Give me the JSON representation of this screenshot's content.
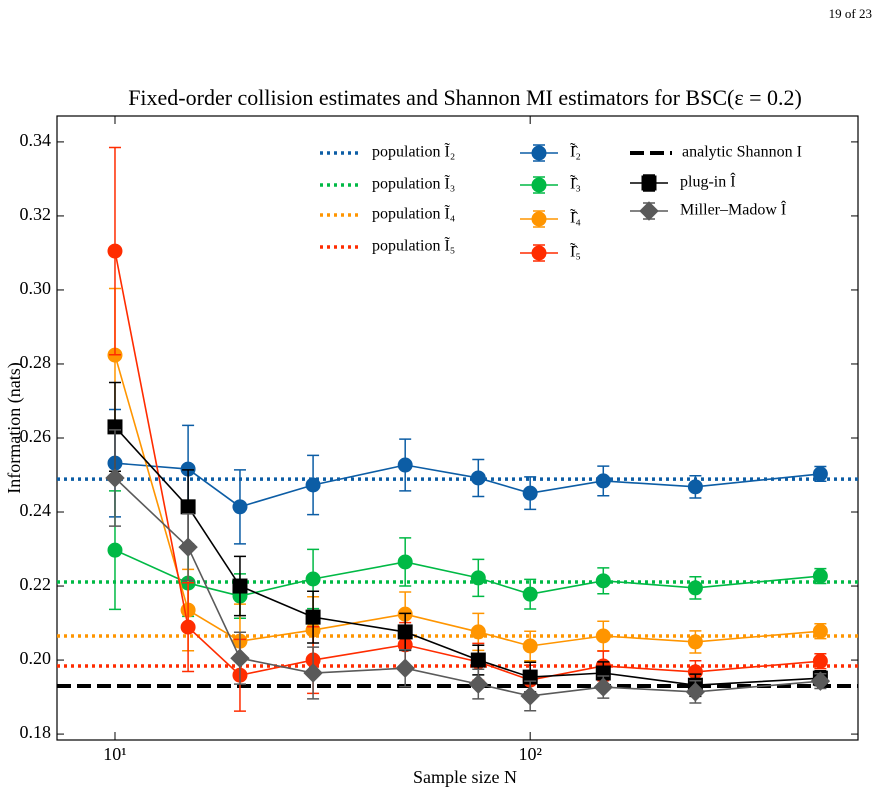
{
  "header": {
    "page": "19 of 23"
  },
  "chart_data": {
    "type": "errorbar-line",
    "title": "Fixed-order collision estimates and Shannon MI estimators for BSC(ε = 0.2)",
    "x_label": "Sample size N",
    "y_label": "Information (nats)",
    "x_scale": "log",
    "x": [
      10,
      15,
      20,
      30,
      50,
      75,
      100,
      150,
      250,
      500
    ],
    "xlim": [
      7.25,
      616
    ],
    "xticks": [
      {
        "value": 10,
        "label": "10¹"
      },
      {
        "value": 100,
        "label": "10²"
      }
    ],
    "ylim": [
      0.1784,
      0.347
    ],
    "yticks": [
      0.18,
      {
        "value": 0.2,
        "label": "0.20"
      },
      0.22,
      0.24,
      0.26,
      0.28,
      {
        "value": 0.3,
        "label": "0.30"
      },
      0.32,
      0.34
    ],
    "hlines": [
      {
        "name": "population Ĩ₂",
        "color": "#0C5DA5",
        "value": 0.2489,
        "style": "dotted"
      },
      {
        "name": "population Ĩ₃",
        "color": "#00B945",
        "value": 0.2211,
        "style": "dotted"
      },
      {
        "name": "population Ĩ₄",
        "color": "#FF9500",
        "value": 0.2065,
        "style": "dotted"
      },
      {
        "name": "population Ĩ₅",
        "color": "#FF2C00",
        "value": 0.1984,
        "style": "dotted"
      },
      {
        "name": "analytic Shannon I",
        "color": "#000000",
        "value": 0.193,
        "style": "dashed"
      }
    ],
    "series": [
      {
        "name": "Ĩ̂₂",
        "color": "#0C5DA5",
        "marker": "circle",
        "values": [
          0.2532,
          0.2516,
          0.2414,
          0.2473,
          0.2527,
          0.2492,
          0.2451,
          0.2484,
          0.2468,
          0.2503
        ],
        "errors": [
          0.0145,
          0.0118,
          0.01,
          0.008,
          0.007,
          0.005,
          0.0044,
          0.004,
          0.003,
          0.002
        ]
      },
      {
        "name": "Ĩ̂₃",
        "color": "#00B945",
        "marker": "circle",
        "values": [
          0.2297,
          0.2208,
          0.2173,
          0.2219,
          0.2265,
          0.2222,
          0.2178,
          0.2214,
          0.2195,
          0.2227
        ],
        "errors": [
          0.016,
          0.009,
          0.006,
          0.008,
          0.0065,
          0.005,
          0.004,
          0.0035,
          0.003,
          0.002
        ]
      },
      {
        "name": "Ĩ̂₄",
        "color": "#FF9500",
        "marker": "circle",
        "values": [
          0.2824,
          0.2135,
          0.2051,
          0.2081,
          0.2124,
          0.2076,
          0.2038,
          0.2065,
          0.2049,
          0.2078
        ],
        "errors": [
          0.018,
          0.011,
          0.01,
          0.009,
          0.006,
          0.005,
          0.004,
          0.004,
          0.003,
          0.002
        ]
      },
      {
        "name": "Ĩ̂₅",
        "color": "#FF2C00",
        "marker": "circle",
        "values": [
          0.3105,
          0.2089,
          0.1959,
          0.2,
          0.2041,
          0.1995,
          0.1946,
          0.1984,
          0.1968,
          0.1997
        ],
        "errors": [
          0.028,
          0.012,
          0.0097,
          0.009,
          0.006,
          0.005,
          0.004,
          0.004,
          0.003,
          0.002
        ]
      },
      {
        "name": "plug-in Î",
        "color": "#000000",
        "marker": "square",
        "values": [
          0.263,
          0.2414,
          0.22,
          0.2116,
          0.2076,
          0.2,
          0.1954,
          0.1965,
          0.1932,
          0.1951
        ],
        "errors": [
          0.012,
          0.01,
          0.008,
          0.007,
          0.005,
          0.004,
          0.004,
          0.003,
          0.003,
          0.002
        ]
      },
      {
        "name": "Miller–Madow Î",
        "color": "#5A5A5A",
        "marker": "diamond",
        "values": [
          0.2492,
          0.2305,
          0.2005,
          0.1965,
          0.1978,
          0.1935,
          0.1903,
          0.1927,
          0.1914,
          0.1943
        ],
        "errors": [
          0.013,
          0.009,
          0.007,
          0.007,
          0.005,
          0.004,
          0.004,
          0.003,
          0.003,
          0.002
        ]
      }
    ]
  }
}
